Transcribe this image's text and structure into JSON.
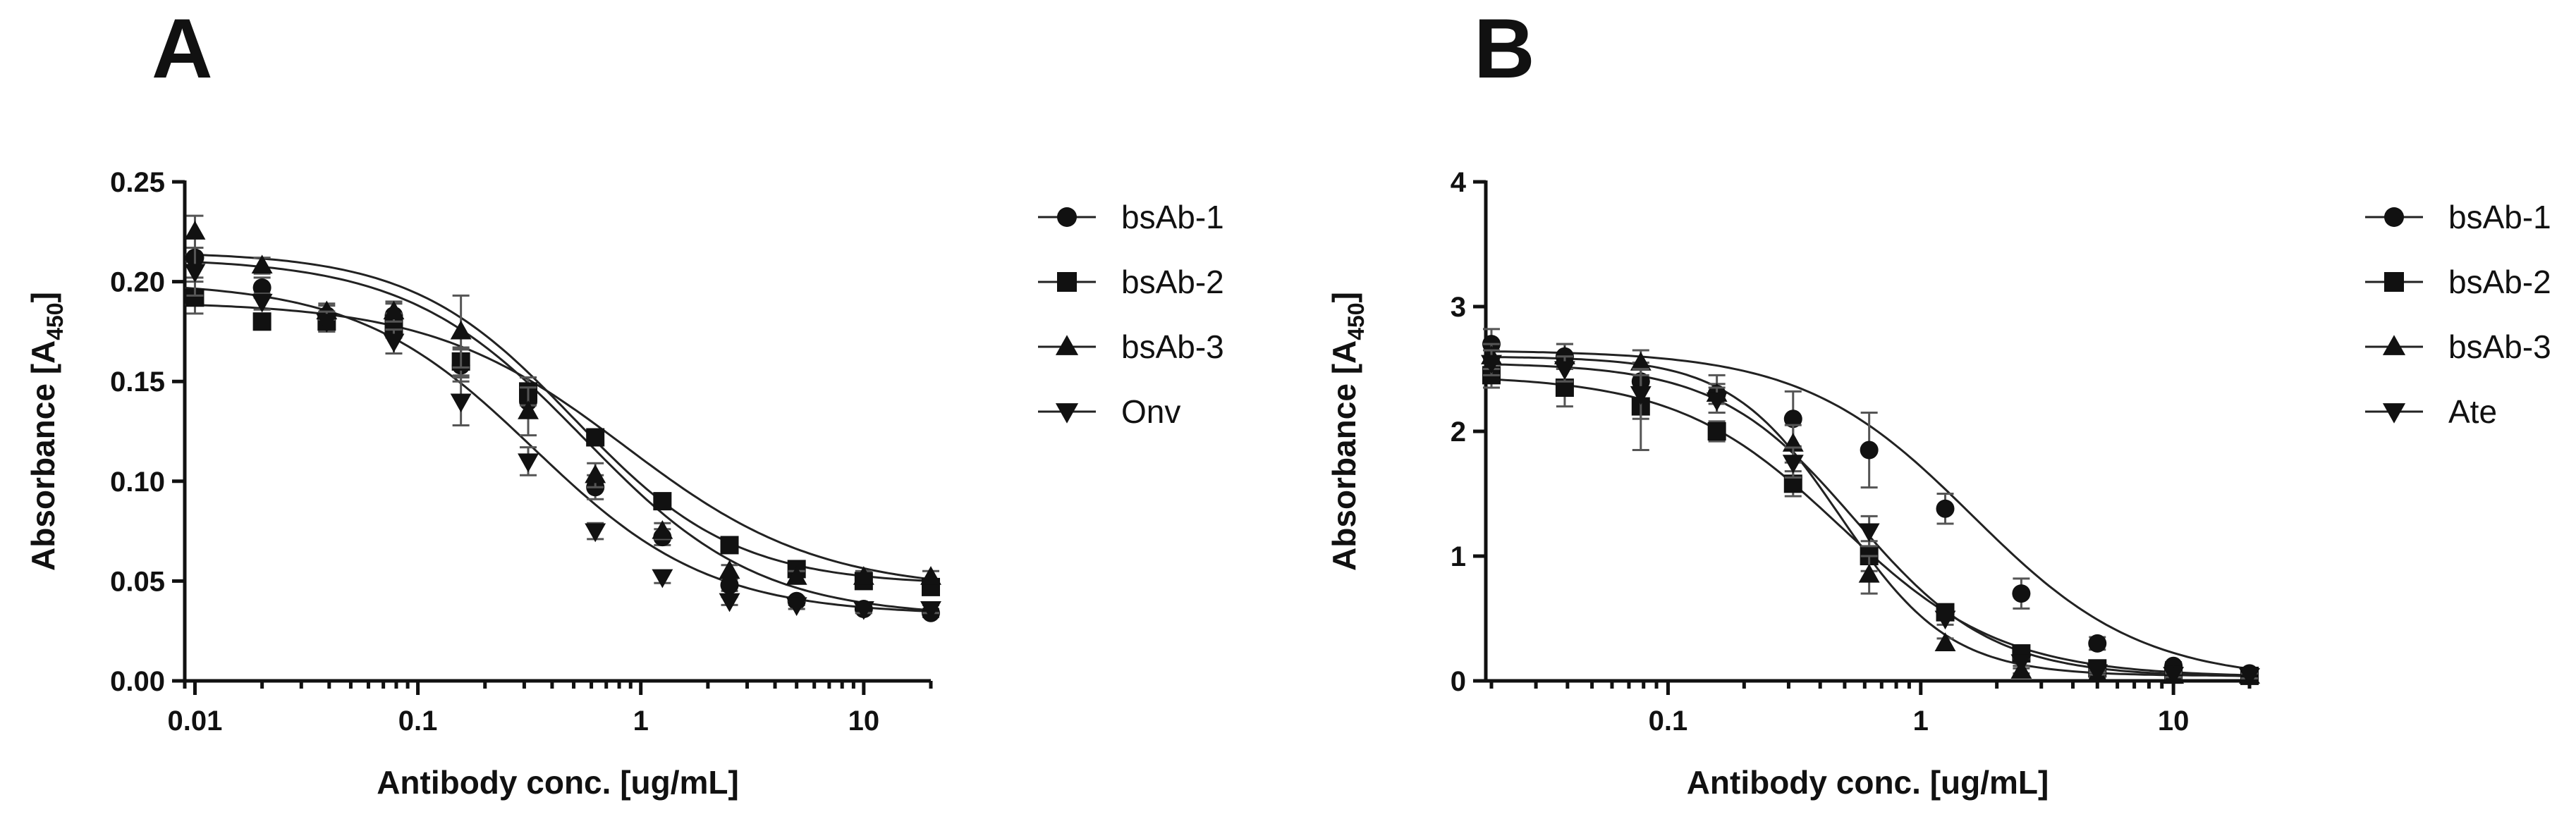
{
  "panels": [
    {
      "letter": "A"
    },
    {
      "letter": "B"
    }
  ],
  "chart_data": [
    {
      "type": "scatter",
      "title": "",
      "xlabel": "Antibody conc. [ug/mL]",
      "ylabel_main": "Absorbance [A",
      "ylabel_sub": "450",
      "ylabel_end": "]",
      "xscale": "log",
      "xlim": [
        0.009,
        20
      ],
      "ylim": [
        0.0,
        0.25
      ],
      "xticks": [
        0.01,
        0.1,
        1,
        10
      ],
      "xtick_labels": [
        "0.01",
        "0.1",
        "1",
        "10"
      ],
      "yticks": [
        0.0,
        0.05,
        0.1,
        0.15,
        0.2,
        0.25
      ],
      "ytick_labels": [
        "0.00",
        "0.05",
        "0.10",
        "0.15",
        "0.20",
        "0.25"
      ],
      "legend_position": "right",
      "x": [
        0.01,
        0.02,
        0.039,
        0.078,
        0.156,
        0.3125,
        0.625,
        1.25,
        2.5,
        5,
        10,
        20
      ],
      "series": [
        {
          "name": "bsAb-1",
          "marker": "circle",
          "y": [
            0.212,
            0.197,
            0.183,
            0.183,
            0.158,
            0.14,
            0.097,
            0.072,
            0.048,
            0.04,
            0.036,
            0.034
          ],
          "err": [
            0.01,
            0.005,
            0.005,
            0.006,
            0.008,
            0.008,
            0.006,
            0.004,
            0.003,
            0.002,
            0.002,
            0.002
          ]
        },
        {
          "name": "bsAb-2",
          "marker": "square",
          "y": [
            0.192,
            0.18,
            0.18,
            0.178,
            0.16,
            0.145,
            0.122,
            0.09,
            0.068,
            0.056,
            0.05,
            0.047
          ],
          "err": [
            0.008,
            0.004,
            0.005,
            0.006,
            0.007,
            0.007,
            0.004,
            0.003,
            0.003,
            0.003,
            0.003,
            0.002
          ]
        },
        {
          "name": "bsAb-3",
          "marker": "triangle-up",
          "y": [
            0.225,
            0.208,
            0.185,
            0.185,
            0.175,
            0.135,
            0.103,
            0.075,
            0.055,
            0.052,
            0.052,
            0.052
          ],
          "err": [
            0.008,
            0.004,
            0.004,
            0.005,
            0.018,
            0.012,
            0.006,
            0.004,
            0.003,
            0.003,
            0.003,
            0.003
          ]
        },
        {
          "name": "Onv",
          "marker": "triangle-down",
          "y": [
            0.205,
            0.19,
            0.18,
            0.17,
            0.14,
            0.11,
            0.075,
            0.052,
            0.04,
            0.038,
            0.036,
            0.036
          ],
          "err": [
            0.012,
            0.004,
            0.005,
            0.006,
            0.012,
            0.007,
            0.004,
            0.003,
            0.002,
            0.002,
            0.002,
            0.002
          ]
        }
      ],
      "fit": [
        {
          "top": 0.212,
          "bottom": 0.032,
          "ec50": 0.55,
          "hill": 1.1
        },
        {
          "top": 0.19,
          "bottom": 0.045,
          "ec50": 0.85,
          "hill": 1.0
        },
        {
          "top": 0.215,
          "bottom": 0.048,
          "ec50": 0.5,
          "hill": 1.2
        },
        {
          "top": 0.2,
          "bottom": 0.033,
          "ec50": 0.33,
          "hill": 1.1
        }
      ]
    },
    {
      "type": "scatter",
      "title": "",
      "xlabel": "Antibody conc. [ug/mL]",
      "ylabel_main": "Absorbance [A",
      "ylabel_sub": "450",
      "ylabel_end": "]",
      "xscale": "log",
      "xlim": [
        0.019,
        20
      ],
      "ylim": [
        0,
        4
      ],
      "xticks": [
        0.1,
        1,
        10
      ],
      "xtick_labels": [
        "0.1",
        "1",
        "10"
      ],
      "yticks": [
        0,
        1,
        2,
        3,
        4
      ],
      "ytick_labels": [
        "0",
        "1",
        "2",
        "3",
        "4"
      ],
      "legend_position": "right",
      "x": [
        0.02,
        0.039,
        0.078,
        0.156,
        0.3125,
        0.625,
        1.25,
        2.5,
        5,
        10,
        20
      ],
      "series": [
        {
          "name": "bsAb-1",
          "marker": "circle",
          "y": [
            2.7,
            2.6,
            2.4,
            2.3,
            2.1,
            1.85,
            1.38,
            0.7,
            0.3,
            0.12,
            0.06
          ],
          "err": [
            0.12,
            0.1,
            0.15,
            0.08,
            0.22,
            0.3,
            0.12,
            0.12,
            0.05,
            0.03,
            0.02
          ]
        },
        {
          "name": "bsAb-2",
          "marker": "square",
          "y": [
            2.45,
            2.35,
            2.2,
            2.0,
            1.58,
            1.0,
            0.55,
            0.22,
            0.1,
            0.05,
            0.04
          ],
          "err": [
            0.1,
            0.15,
            0.35,
            0.08,
            0.1,
            0.12,
            0.05,
            0.04,
            0.02,
            0.02,
            0.02
          ]
        },
        {
          "name": "bsAb-3",
          "marker": "triangle-up",
          "y": [
            2.6,
            2.6,
            2.55,
            2.3,
            1.9,
            0.85,
            0.3,
            0.08,
            0.05,
            0.04,
            0.04
          ],
          "err": [
            0.1,
            0.1,
            0.1,
            0.15,
            0.15,
            0.15,
            0.04,
            0.02,
            0.02,
            0.02,
            0.02
          ]
        },
        {
          "name": "Ate",
          "marker": "triangle-down",
          "y": [
            2.55,
            2.5,
            2.3,
            2.25,
            1.75,
            1.2,
            0.5,
            0.15,
            0.07,
            0.05,
            0.04
          ],
          "err": [
            0.1,
            0.1,
            0.2,
            0.1,
            0.12,
            0.12,
            0.05,
            0.03,
            0.02,
            0.02,
            0.02
          ]
        }
      ],
      "fit": [
        {
          "top": 2.65,
          "bottom": 0.0,
          "ec50": 1.6,
          "hill": 1.3
        },
        {
          "top": 2.45,
          "bottom": 0.03,
          "ec50": 0.48,
          "hill": 1.35
        },
        {
          "top": 2.6,
          "bottom": 0.04,
          "ec50": 0.48,
          "hill": 2.0
        },
        {
          "top": 2.55,
          "bottom": 0.03,
          "ec50": 0.55,
          "hill": 1.6
        }
      ]
    }
  ]
}
